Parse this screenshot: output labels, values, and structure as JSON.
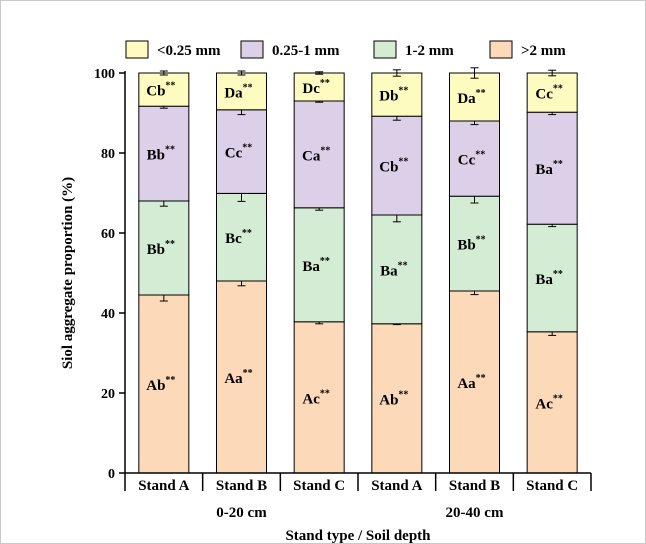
{
  "chart_data": {
    "type": "bar",
    "stacked": true,
    "xlabel": "Stand type / Soil depth",
    "ylabel": "Siol aggregate proportion (%)",
    "ylim": [
      0,
      100
    ],
    "yticks": [
      0,
      20,
      40,
      60,
      80,
      100
    ],
    "categories": [
      "Stand A",
      "Stand B",
      "Stand C",
      "Stand A",
      "Stand B",
      "Stand C"
    ],
    "groups": [
      {
        "label": "0-20 cm",
        "members": [
          0,
          1,
          2
        ]
      },
      {
        "label": "20-40 cm",
        "members": [
          3,
          4,
          5
        ]
      }
    ],
    "legend_position": "top",
    "series": [
      {
        "name": ">2 mm",
        "color": "#fcd9b8",
        "values": [
          44.5,
          48.0,
          37.8,
          37.3,
          45.5,
          35.3
        ],
        "errors": [
          1.5,
          1.2,
          0.5,
          0.2,
          0.9,
          0.9
        ],
        "labels": [
          "Ab**",
          "Aa**",
          "Ac**",
          "Ab**",
          "Aa**",
          "Ac**"
        ]
      },
      {
        "name": "1-2 mm",
        "color": "#d3ecd3",
        "values": [
          23.5,
          21.9,
          28.5,
          27.2,
          23.7,
          26.9
        ],
        "errors": [
          1.3,
          2.0,
          0.6,
          1.7,
          1.7,
          0.6
        ],
        "labels": [
          "Bb**",
          "Bc**",
          "Ba**",
          "Ba**",
          "Bb**",
          "Ba**"
        ]
      },
      {
        "name": "0.25-1 mm",
        "color": "#dcd0e8",
        "values": [
          23.7,
          20.9,
          26.7,
          24.7,
          18.8,
          28.0
        ],
        "errors": [
          0.5,
          1.2,
          0.3,
          1.0,
          0.9,
          0.6
        ],
        "labels": [
          "Bb**",
          "Cc**",
          "Ca**",
          "Cb**",
          "Cc**",
          "Ba**"
        ]
      },
      {
        "name": "<0.25 mm",
        "color": "#fdfbc0",
        "values": [
          8.3,
          9.2,
          7.0,
          10.8,
          12.0,
          9.8
        ],
        "errors": [
          0.5,
          0.5,
          0.3,
          0.8,
          1.3,
          0.7
        ],
        "labels": [
          "Cb**",
          "Da**",
          "Dc**",
          "Db**",
          "Da**",
          "Cc**"
        ]
      }
    ]
  }
}
